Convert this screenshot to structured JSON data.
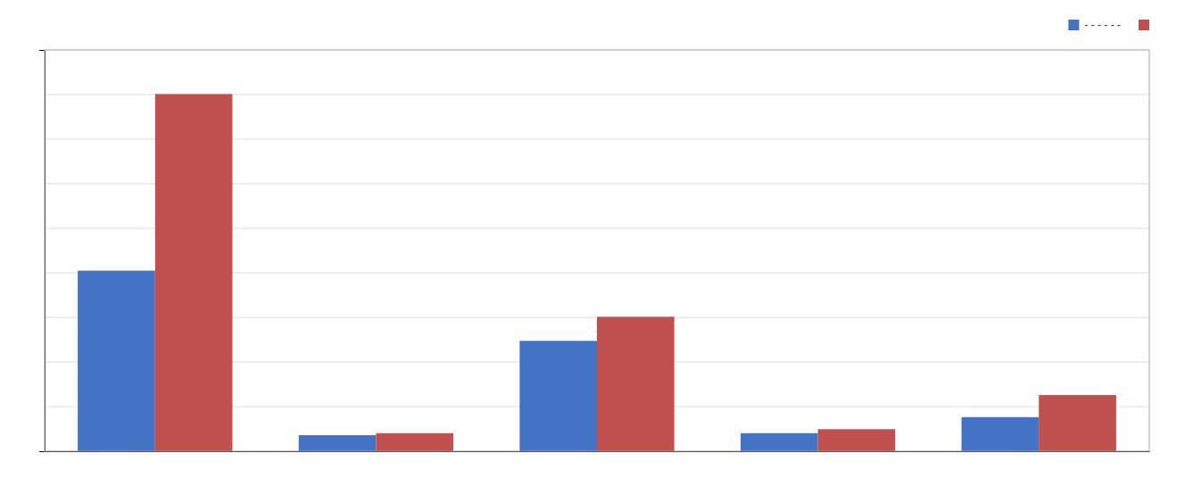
{
  "chart_data": {
    "type": "bar",
    "categories": [
      null,
      null,
      null,
      null,
      null
    ],
    "series": [
      {
        "name": "- - - - - -",
        "color": "#4472C4",
        "values": [
          0.9,
          0.08,
          0.55,
          0.09,
          0.17
        ]
      },
      {
        "color": "#C0504D",
        "values": [
          1.78,
          0.09,
          0.67,
          0.11,
          0.28
        ]
      }
    ],
    "ylim": [
      0,
      2.0
    ],
    "yticks": [
      0,
      0.2222222222222222,
      0.4444444444444444,
      0.6666666666666666,
      0.8888888888888888,
      1.1111111111111112,
      1.3333333333333333,
      1.5555555555555556,
      1.7777777777777777,
      2.0
    ],
    "grid": true,
    "tick_labels": false,
    "legend": "upper right"
  }
}
